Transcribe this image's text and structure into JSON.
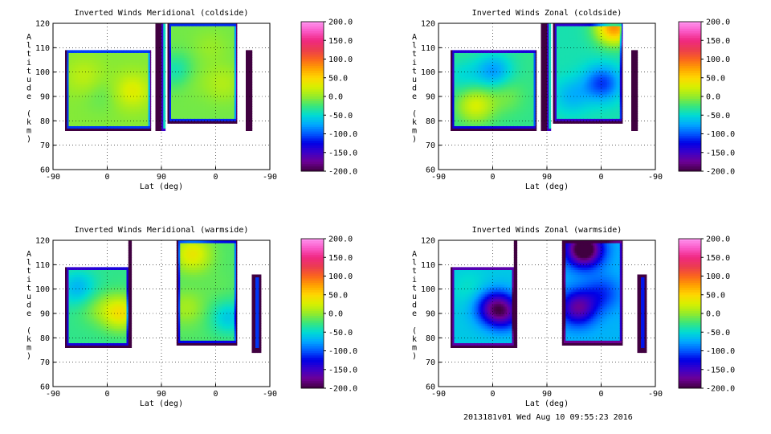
{
  "footer": "2013181v01 Wed Aug 10 09:55:23 2016",
  "chart_data": [
    {
      "type": "heatmap",
      "title": "Inverted Winds Meridional (coldside)",
      "xlabel": "Lat (deg)",
      "ylabel": "Altitude (km)",
      "x_ticks": [
        "-90",
        "0",
        "90",
        "0",
        "-90"
      ],
      "y_ticks": [
        "60",
        "70",
        "80",
        "90",
        "100",
        "110",
        "120"
      ],
      "ylim": [
        60,
        120
      ],
      "colorbar_ticks": [
        "200.0",
        "150.0",
        "100.0",
        "50.0",
        "0.0",
        "-50.0",
        "-100.0",
        "-150.0",
        "-200.0"
      ],
      "colorbar_range": [
        -200,
        200
      ],
      "grid": true,
      "regions": [
        {
          "x": [
            -70,
            72
          ],
          "y": [
            76,
            109
          ],
          "base": -5,
          "blobs": [
            [
              -40,
              98,
              20
            ],
            [
              40,
              92,
              35
            ],
            [
              -10,
              90,
              -10
            ]
          ]
        },
        {
          "x": [
            80,
            90
          ],
          "y": [
            76,
            120
          ],
          "base": -200,
          "blobs": []
        },
        {
          "x": [
            90,
            96
          ],
          "y": [
            76,
            120
          ],
          "base": 60,
          "blobs": []
        },
        {
          "x": [
            100,
            215
          ],
          "y": [
            79,
            120
          ],
          "base": -10,
          "blobs": [
            [
              130,
              98,
              15
            ],
            [
              190,
              95,
              20
            ],
            [
              170,
              110,
              10
            ],
            [
              115,
              100,
              -40
            ]
          ]
        },
        {
          "x": [
            230,
            240
          ],
          "y": [
            76,
            109
          ],
          "base": -130,
          "blobs": []
        }
      ]
    },
    {
      "type": "heatmap",
      "title": "Inverted Winds Zonal (coldside)",
      "xlabel": "Lat (deg)",
      "ylabel": "Altitude (km)",
      "x_ticks": [
        "-90",
        "0",
        "90",
        "0",
        "-90"
      ],
      "y_ticks": [
        "60",
        "70",
        "80",
        "90",
        "100",
        "110",
        "120"
      ],
      "ylim": [
        60,
        120
      ],
      "colorbar_ticks": [
        "200.0",
        "150.0",
        "100.0",
        "50.0",
        "0.0",
        "-50.0",
        "-100.0",
        "-150.0",
        "-200.0"
      ],
      "colorbar_range": [
        -200,
        200
      ],
      "grid": true,
      "regions": [
        {
          "x": [
            -70,
            72
          ],
          "y": [
            76,
            109
          ],
          "base": -30,
          "blobs": [
            [
              -30,
              86,
              55
            ],
            [
              20,
              90,
              20
            ],
            [
              0,
              100,
              -50
            ],
            [
              -50,
              98,
              -20
            ]
          ]
        },
        {
          "x": [
            80,
            90
          ],
          "y": [
            76,
            120
          ],
          "base": -200,
          "blobs": []
        },
        {
          "x": [
            90,
            96
          ],
          "y": [
            76,
            120
          ],
          "base": 60,
          "blobs": []
        },
        {
          "x": [
            100,
            215
          ],
          "y": [
            79,
            120
          ],
          "base": -40,
          "blobs": [
            [
              200,
              118,
              120
            ],
            [
              150,
              105,
              0
            ],
            [
              180,
              95,
              -70
            ],
            [
              130,
              90,
              -30
            ]
          ]
        },
        {
          "x": [
            230,
            240
          ],
          "y": [
            76,
            109
          ],
          "base": -130,
          "blobs": []
        }
      ]
    },
    {
      "type": "heatmap",
      "title": "Inverted Winds Meridional (warmside)",
      "xlabel": "Lat (deg)",
      "ylabel": "Altitude (km)",
      "x_ticks": [
        "-90",
        "0",
        "90",
        "0",
        "-90"
      ],
      "y_ticks": [
        "60",
        "70",
        "80",
        "90",
        "100",
        "110",
        "120"
      ],
      "ylim": [
        60,
        120
      ],
      "colorbar_ticks": [
        "200.0",
        "150.0",
        "100.0",
        "50.0",
        "0.0",
        "-50.0",
        "-100.0",
        "-150.0",
        "-200.0"
      ],
      "colorbar_range": [
        -200,
        200
      ],
      "grid": true,
      "regions": [
        {
          "x": [
            -70,
            35
          ],
          "y": [
            76,
            109
          ],
          "base": -30,
          "blobs": [
            [
              20,
              90,
              70
            ],
            [
              -20,
              92,
              20
            ],
            [
              -50,
              100,
              -40
            ]
          ]
        },
        {
          "x": [
            35,
            40
          ],
          "y": [
            76,
            120
          ],
          "base": -180,
          "blobs": []
        },
        {
          "x": [
            115,
            215
          ],
          "y": [
            77,
            120
          ],
          "base": -20,
          "blobs": [
            [
              140,
              114,
              55
            ],
            [
              180,
              100,
              5
            ],
            [
              130,
              92,
              25
            ],
            [
              200,
              88,
              -40
            ]
          ]
        },
        {
          "x": [
            240,
            255
          ],
          "y": [
            74,
            106
          ],
          "base": -110,
          "blobs": []
        }
      ]
    },
    {
      "type": "heatmap",
      "title": "Inverted Winds Zonal (warmside)",
      "xlabel": "Lat (deg)",
      "ylabel": "Altitude (km)",
      "x_ticks": [
        "-90",
        "0",
        "90",
        "0",
        "-90"
      ],
      "y_ticks": [
        "60",
        "70",
        "80",
        "90",
        "100",
        "110",
        "120"
      ],
      "ylim": [
        60,
        120
      ],
      "colorbar_ticks": [
        "200.0",
        "150.0",
        "100.0",
        "50.0",
        "0.0",
        "-50.0",
        "-100.0",
        "-150.0",
        "-200.0"
      ],
      "colorbar_range": [
        -200,
        200
      ],
      "grid": true,
      "regions": [
        {
          "x": [
            -70,
            35
          ],
          "y": [
            76,
            109
          ],
          "base": -60,
          "blobs": [
            [
              -40,
              100,
              15
            ],
            [
              0,
              92,
              -90
            ],
            [
              20,
              90,
              -70
            ]
          ]
        },
        {
          "x": [
            35,
            40
          ],
          "y": [
            76,
            120
          ],
          "base": -180,
          "blobs": []
        },
        {
          "x": [
            115,
            215
          ],
          "y": [
            77,
            120
          ],
          "base": -70,
          "blobs": [
            [
              150,
              116,
              -160
            ],
            [
              180,
              98,
              -40
            ],
            [
              140,
              92,
              -100
            ]
          ]
        },
        {
          "x": [
            240,
            255
          ],
          "y": [
            74,
            106
          ],
          "base": -120,
          "blobs": []
        }
      ]
    }
  ]
}
